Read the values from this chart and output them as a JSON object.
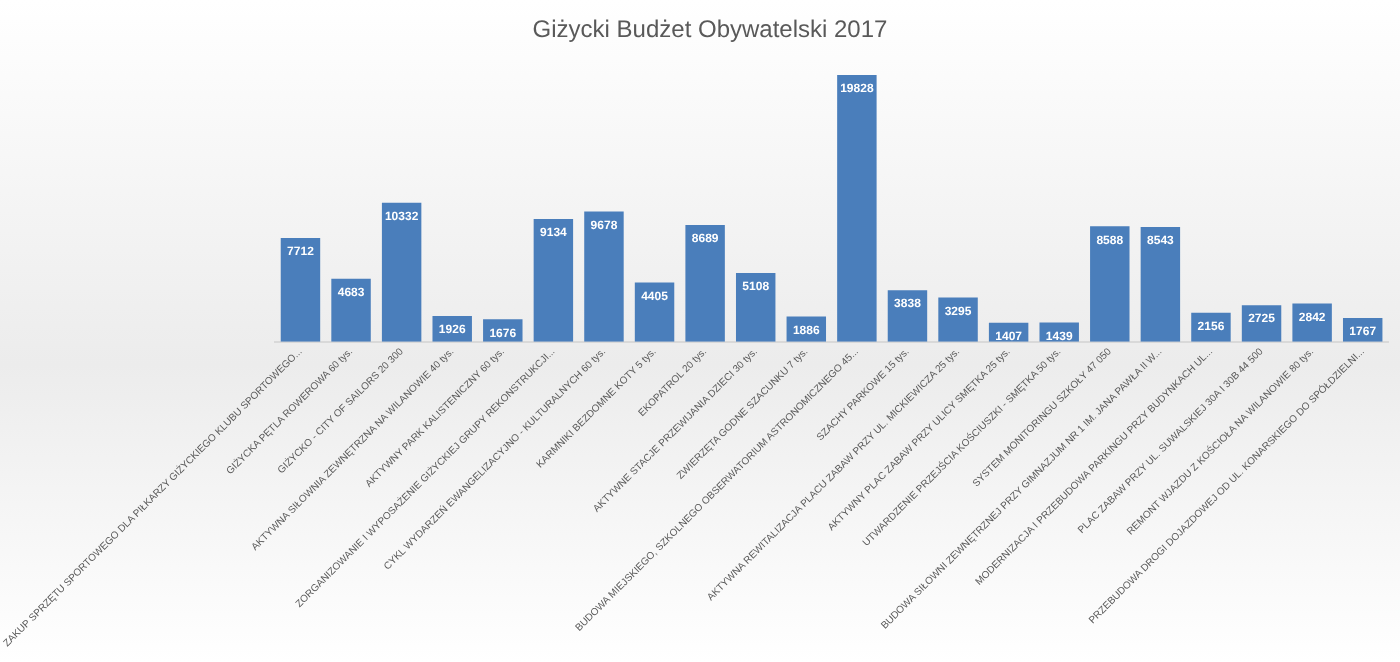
{
  "chart_data": {
    "type": "bar",
    "title": "Giżycki Budżet Obywatelski 2017",
    "categories": [
      "ZAKUP SPRZĘTU SPORTOWEGO DLA PIŁKARZY GIŻYCKIEGO KLUBU SPORTOWEGO...",
      "GIŻYCKA PĘTLA ROWEROWA 60 tys.",
      "GIŻYCKO - CITY OF SAILORS 20 300",
      "AKTYWNA SIŁOWNIA ZEWNĘTRZNA NA WILANOWIE 40 tys.",
      "AKTYWNY PARK KALISTENICZNY 60 tys.",
      "ZORGANIZOWANIE I WYPOSAŻENIE GIŻYCKIEJ GRUPY REKONSTRUKCJI...",
      "CYKL WYDARZEŃ EWANGELIZACYJNO - KULTURALNYCH 60 tys.",
      "KARMNIKI BEZDOMNE KOTY 5 tys.",
      "EKOPATROL 20 tys.",
      "AKTYWNE STACJE PRZEWIJANIA DZIECI 30 tys.",
      "ZWIERZĘTA GODNE SZACUNKU 7 tys.",
      "BUDOWA MIEJSKIEGO, SZKOLNEGO OBSERWATORIUM ASTRONOMICZNEGO 45...",
      "SZACHY PARKOWE 15 tys.",
      "AKTYWNA REWITALIZACJA PLACU ZABAW PRZY UL. MICKIEWICZA 25 tys.",
      "AKTYWNY PLAC ZABAW PRZY ULICY SMĘTKA 25 tys.",
      "UTWARDZENIE PRZEJŚCIA KOŚCIUSZKI - SMĘTKA 50 tys.",
      "SYSTEM MONITORINGU SZKOŁY 47 050",
      "BUDOWA SIŁOWNI ZEWNĘTRZNEJ PRZY GIMNAZJUM NR 1 IM. JANA PAWŁA II W...",
      "MODERNIZACJA I PRZEBUDOWA PARKINGU PRZY BUDYNKACH UL...",
      "PLAC ZABAW PRZY UL. SUWALSKIEJ 30A I 30B 44 500",
      "REMONT WJAZDU Z KOŚCIOŁA NA WILANOWIE 80 tys.",
      "PRZEBUDOWA DROGI DOJAZDOWEJ OD UL. KONARSKIEGO DO SPÓŁDZIELNI..."
    ],
    "values": [
      7712,
      4683,
      10332,
      1926,
      1676,
      9134,
      9678,
      4405,
      8689,
      5108,
      1886,
      19828,
      3838,
      3295,
      1407,
      1439,
      8588,
      8543,
      2156,
      2725,
      2842,
      1767
    ],
    "color": "#4a7ebb",
    "data_labels": true,
    "grid": false,
    "legend": false,
    "tick_labels": "x"
  }
}
